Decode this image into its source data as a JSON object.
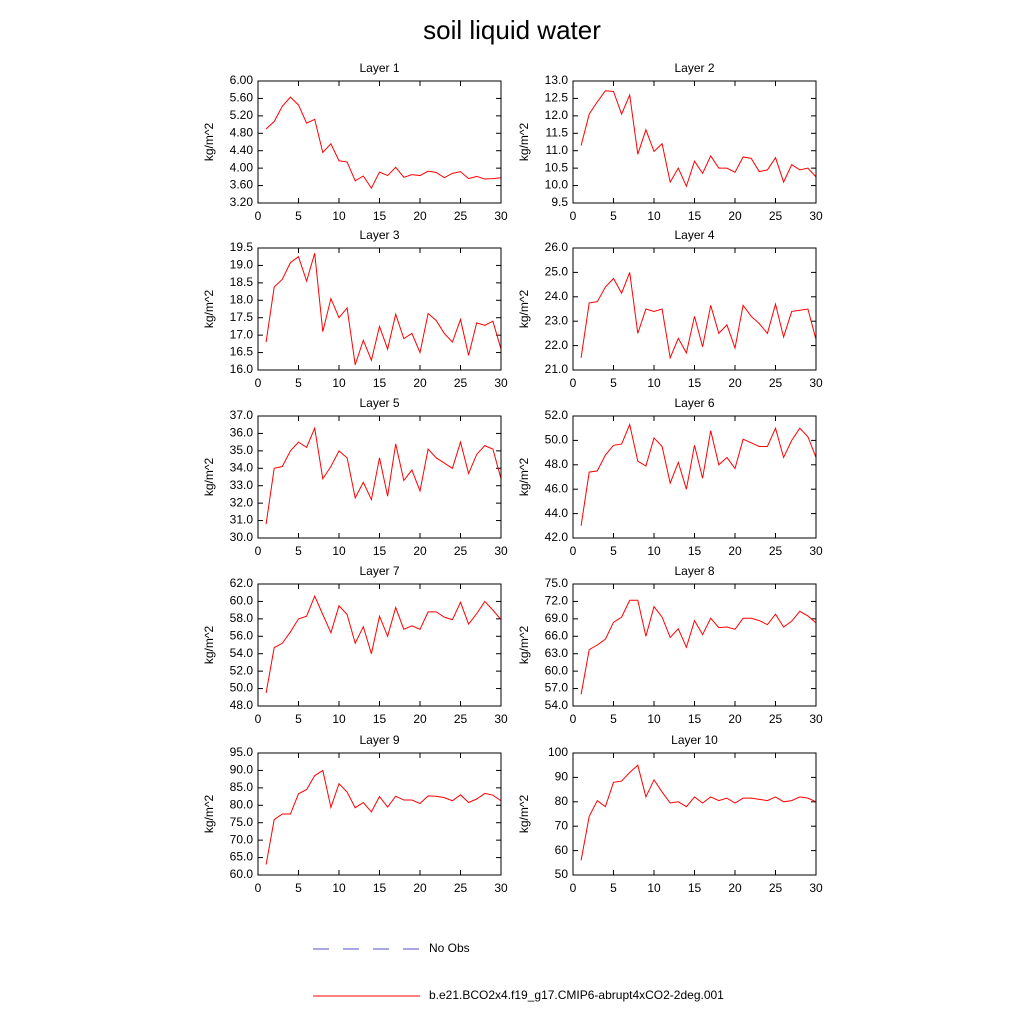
{
  "title": "soil liquid water",
  "legend": [
    {
      "label": "No Obs",
      "color": "#5050c8",
      "dash": true
    },
    {
      "label": "b.e21.BCO2x4.f19_g17.CMIP6-abrupt4xCO2-2deg.001",
      "color": "#ff0000",
      "dash": false
    }
  ],
  "chart_data": [
    {
      "type": "line",
      "title": "Layer 1",
      "ylabel": "kg/m^2",
      "color": "#ff0000",
      "x": [
        1,
        2,
        3,
        4,
        5,
        6,
        7,
        8,
        9,
        10,
        11,
        12,
        13,
        14,
        15,
        16,
        17,
        18,
        19,
        20,
        21,
        22,
        23,
        24,
        25,
        26,
        27,
        28,
        29,
        30
      ],
      "values": [
        4.9,
        5.07,
        5.42,
        5.63,
        5.45,
        5.03,
        5.12,
        4.36,
        4.56,
        4.17,
        4.14,
        3.71,
        3.82,
        3.54,
        3.91,
        3.83,
        4.02,
        3.79,
        3.85,
        3.83,
        3.93,
        3.9,
        3.78,
        3.88,
        3.92,
        3.76,
        3.81,
        3.75,
        3.76,
        3.78
      ],
      "xlim": [
        0,
        30
      ],
      "xticks": [
        0,
        5,
        10,
        15,
        20,
        25,
        30
      ],
      "ylim": [
        3.2,
        6.0
      ],
      "yticks": [
        {
          "value": 3.2,
          "label": "3.20"
        },
        {
          "value": 3.6,
          "label": "3.60"
        },
        {
          "value": 4.0,
          "label": "4.00"
        },
        {
          "value": 4.4,
          "label": "4.40"
        },
        {
          "value": 4.8,
          "label": "4.80"
        },
        {
          "value": 5.2,
          "label": "5.20"
        },
        {
          "value": 5.6,
          "label": "5.60"
        },
        {
          "value": 6.0,
          "label": "6.00"
        }
      ]
    },
    {
      "type": "line",
      "title": "Layer 2",
      "ylabel": "kg/m^2",
      "color": "#ff0000",
      "x": [
        1,
        2,
        3,
        4,
        5,
        6,
        7,
        8,
        9,
        10,
        11,
        12,
        13,
        14,
        15,
        16,
        17,
        18,
        19,
        20,
        21,
        22,
        23,
        24,
        25,
        26,
        27,
        28,
        29,
        30
      ],
      "values": [
        11.15,
        12.05,
        12.4,
        12.72,
        12.7,
        12.05,
        12.6,
        10.9,
        11.6,
        10.98,
        11.2,
        10.1,
        10.5,
        9.98,
        10.7,
        10.35,
        10.85,
        10.5,
        10.5,
        10.38,
        10.82,
        10.78,
        10.4,
        10.45,
        10.8,
        10.1,
        10.6,
        10.45,
        10.5,
        10.25
      ],
      "xlim": [
        0,
        30
      ],
      "xticks": [
        0,
        5,
        10,
        15,
        20,
        25,
        30
      ],
      "ylim": [
        9.5,
        13.0
      ],
      "yticks": [
        9.5,
        {
          "value": 10,
          "label": "10.0"
        },
        10.5,
        {
          "value": 11,
          "label": "11.0"
        },
        11.5,
        {
          "value": 12,
          "label": "12.0"
        },
        12.5,
        {
          "value": 13,
          "label": "13.0"
        }
      ]
    },
    {
      "type": "line",
      "title": "Layer 3",
      "ylabel": "kg/m^2",
      "color": "#ff0000",
      "x": [
        1,
        2,
        3,
        4,
        5,
        6,
        7,
        8,
        9,
        10,
        11,
        12,
        13,
        14,
        15,
        16,
        17,
        18,
        19,
        20,
        21,
        22,
        23,
        24,
        25,
        26,
        27,
        28,
        29,
        30
      ],
      "values": [
        16.8,
        18.38,
        18.6,
        19.08,
        19.25,
        18.55,
        19.35,
        17.1,
        18.05,
        17.5,
        17.78,
        16.15,
        16.85,
        16.28,
        17.25,
        16.6,
        17.6,
        16.9,
        17.05,
        16.5,
        17.62,
        17.42,
        17.05,
        16.8,
        17.45,
        16.42,
        17.35,
        17.28,
        17.4,
        16.6
      ],
      "xlim": [
        0,
        30
      ],
      "xticks": [
        0,
        5,
        10,
        15,
        20,
        25,
        30
      ],
      "ylim": [
        16.0,
        19.5
      ],
      "yticks": [
        {
          "value": 16,
          "label": "16.0"
        },
        16.5,
        {
          "value": 17,
          "label": "17.0"
        },
        17.5,
        {
          "value": 18,
          "label": "18.0"
        },
        18.5,
        {
          "value": 19,
          "label": "19.0"
        },
        19.5
      ]
    },
    {
      "type": "line",
      "title": "Layer 4",
      "ylabel": "kg/m^2",
      "color": "#ff0000",
      "x": [
        1,
        2,
        3,
        4,
        5,
        6,
        7,
        8,
        9,
        10,
        11,
        12,
        13,
        14,
        15,
        16,
        17,
        18,
        19,
        20,
        21,
        22,
        23,
        24,
        25,
        26,
        27,
        28,
        29,
        30
      ],
      "values": [
        21.5,
        23.75,
        23.8,
        24.4,
        24.75,
        24.15,
        25.0,
        22.5,
        23.5,
        23.4,
        23.5,
        21.5,
        22.3,
        21.7,
        23.2,
        21.95,
        23.65,
        22.5,
        22.85,
        21.9,
        23.65,
        23.2,
        22.9,
        22.5,
        23.7,
        22.35,
        23.4,
        23.45,
        23.5,
        22.25
      ],
      "xlim": [
        0,
        30
      ],
      "xticks": [
        0,
        5,
        10,
        15,
        20,
        25,
        30
      ],
      "ylim": [
        21.0,
        26.0
      ],
      "yticks": [
        {
          "value": 21,
          "label": "21.0"
        },
        {
          "value": 22,
          "label": "22.0"
        },
        {
          "value": 23,
          "label": "23.0"
        },
        {
          "value": 24,
          "label": "24.0"
        },
        {
          "value": 25,
          "label": "25.0"
        },
        {
          "value": 26,
          "label": "26.0"
        }
      ]
    },
    {
      "type": "line",
      "title": "Layer 5",
      "ylabel": "kg/m^2",
      "color": "#ff0000",
      "x": [
        1,
        2,
        3,
        4,
        5,
        6,
        7,
        8,
        9,
        10,
        11,
        12,
        13,
        14,
        15,
        16,
        17,
        18,
        19,
        20,
        21,
        22,
        23,
        24,
        25,
        26,
        27,
        28,
        29,
        30
      ],
      "values": [
        30.8,
        34.0,
        34.1,
        35.0,
        35.5,
        35.2,
        36.3,
        33.4,
        34.1,
        35.0,
        34.6,
        32.3,
        33.2,
        32.2,
        34.6,
        32.4,
        35.4,
        33.3,
        33.9,
        32.7,
        35.1,
        34.6,
        34.3,
        34.0,
        35.5,
        33.7,
        34.8,
        35.3,
        35.1,
        33.4
      ],
      "xlim": [
        0,
        30
      ],
      "xticks": [
        0,
        5,
        10,
        15,
        20,
        25,
        30
      ],
      "ylim": [
        30.0,
        37.0
      ],
      "yticks": [
        {
          "value": 30,
          "label": "30.0"
        },
        {
          "value": 31,
          "label": "31.0"
        },
        {
          "value": 32,
          "label": "32.0"
        },
        {
          "value": 33,
          "label": "33.0"
        },
        {
          "value": 34,
          "label": "34.0"
        },
        {
          "value": 35,
          "label": "35.0"
        },
        {
          "value": 36,
          "label": "36.0"
        },
        {
          "value": 37,
          "label": "37.0"
        }
      ]
    },
    {
      "type": "line",
      "title": "Layer 6",
      "ylabel": "kg/m^2",
      "color": "#ff0000",
      "x": [
        1,
        2,
        3,
        4,
        5,
        6,
        7,
        8,
        9,
        10,
        11,
        12,
        13,
        14,
        15,
        16,
        17,
        18,
        19,
        20,
        21,
        22,
        23,
        24,
        25,
        26,
        27,
        28,
        29,
        30
      ],
      "values": [
        43.0,
        47.4,
        47.5,
        48.8,
        49.6,
        49.7,
        51.3,
        48.3,
        47.9,
        50.2,
        49.5,
        46.5,
        48.2,
        46.0,
        49.6,
        46.9,
        50.8,
        48.0,
        48.6,
        47.7,
        50.1,
        49.8,
        49.5,
        49.5,
        51.0,
        48.6,
        50.0,
        51.0,
        50.3,
        48.6
      ],
      "xlim": [
        0,
        30
      ],
      "xticks": [
        0,
        5,
        10,
        15,
        20,
        25,
        30
      ],
      "ylim": [
        42.0,
        52.0
      ],
      "yticks": [
        {
          "value": 42,
          "label": "42.0"
        },
        {
          "value": 44,
          "label": "44.0"
        },
        {
          "value": 46,
          "label": "46.0"
        },
        {
          "value": 48,
          "label": "48.0"
        },
        {
          "value": 50,
          "label": "50.0"
        },
        {
          "value": 52,
          "label": "52.0"
        }
      ]
    },
    {
      "type": "line",
      "title": "Layer 7",
      "ylabel": "kg/m^2",
      "color": "#ff0000",
      "x": [
        1,
        2,
        3,
        4,
        5,
        6,
        7,
        8,
        9,
        10,
        11,
        12,
        13,
        14,
        15,
        16,
        17,
        18,
        19,
        20,
        21,
        22,
        23,
        24,
        25,
        26,
        27,
        28,
        29,
        30
      ],
      "values": [
        49.5,
        54.7,
        55.2,
        56.5,
        58.0,
        58.3,
        60.6,
        58.5,
        56.4,
        59.5,
        58.5,
        55.2,
        57.1,
        54.0,
        58.3,
        56.0,
        59.3,
        56.8,
        57.2,
        56.8,
        58.8,
        58.8,
        58.2,
        57.9,
        59.9,
        57.4,
        58.6,
        60.0,
        59.0,
        57.9
      ],
      "xlim": [
        0,
        30
      ],
      "xticks": [
        0,
        5,
        10,
        15,
        20,
        25,
        30
      ],
      "ylim": [
        48.0,
        62.0
      ],
      "yticks": [
        {
          "value": 48,
          "label": "48.0"
        },
        {
          "value": 50,
          "label": "50.0"
        },
        {
          "value": 52,
          "label": "52.0"
        },
        {
          "value": 54,
          "label": "54.0"
        },
        {
          "value": 56,
          "label": "56.0"
        },
        {
          "value": 58,
          "label": "58.0"
        },
        {
          "value": 60,
          "label": "60.0"
        },
        {
          "value": 62,
          "label": "62.0"
        }
      ]
    },
    {
      "type": "line",
      "title": "Layer 8",
      "ylabel": "kg/m^2",
      "color": "#ff0000",
      "x": [
        1,
        2,
        3,
        4,
        5,
        6,
        7,
        8,
        9,
        10,
        11,
        12,
        13,
        14,
        15,
        16,
        17,
        18,
        19,
        20,
        21,
        22,
        23,
        24,
        25,
        26,
        27,
        28,
        29,
        30
      ],
      "values": [
        56.0,
        63.7,
        64.5,
        65.5,
        68.4,
        69.3,
        72.2,
        72.2,
        66.0,
        71.1,
        69.3,
        65.8,
        67.3,
        64.1,
        68.7,
        66.3,
        69.1,
        67.5,
        67.6,
        67.2,
        69.1,
        69.1,
        68.7,
        68.0,
        69.8,
        67.6,
        68.6,
        70.3,
        69.5,
        68.3
      ],
      "xlim": [
        0,
        30
      ],
      "xticks": [
        0,
        5,
        10,
        15,
        20,
        25,
        30
      ],
      "ylim": [
        54.0,
        75.0
      ],
      "yticks": [
        {
          "value": 54,
          "label": "54.0"
        },
        {
          "value": 57,
          "label": "57.0"
        },
        {
          "value": 60,
          "label": "60.0"
        },
        {
          "value": 63,
          "label": "63.0"
        },
        {
          "value": 66,
          "label": "66.0"
        },
        {
          "value": 69,
          "label": "69.0"
        },
        {
          "value": 72,
          "label": "72.0"
        },
        {
          "value": 75,
          "label": "75.0"
        }
      ]
    },
    {
      "type": "line",
      "title": "Layer 9",
      "ylabel": "kg/m^2",
      "color": "#ff0000",
      "x": [
        1,
        2,
        3,
        4,
        5,
        6,
        7,
        8,
        9,
        10,
        11,
        12,
        13,
        14,
        15,
        16,
        17,
        18,
        19,
        20,
        21,
        22,
        23,
        24,
        25,
        26,
        27,
        28,
        29,
        30
      ],
      "values": [
        63.0,
        75.9,
        77.5,
        77.5,
        83.3,
        84.5,
        88.5,
        90.0,
        79.4,
        86.2,
        83.8,
        79.3,
        80.8,
        78.1,
        82.5,
        79.5,
        82.6,
        81.5,
        81.5,
        80.5,
        82.7,
        82.6,
        82.2,
        81.3,
        83.0,
        80.8,
        81.8,
        83.4,
        82.9,
        81.3
      ],
      "xlim": [
        0,
        30
      ],
      "xticks": [
        0,
        5,
        10,
        15,
        20,
        25,
        30
      ],
      "ylim": [
        60.0,
        95.0
      ],
      "yticks": [
        {
          "value": 60,
          "label": "60.0"
        },
        {
          "value": 65,
          "label": "65.0"
        },
        {
          "value": 70,
          "label": "70.0"
        },
        {
          "value": 75,
          "label": "75.0"
        },
        {
          "value": 80,
          "label": "80.0"
        },
        {
          "value": 85,
          "label": "85.0"
        },
        {
          "value": 90,
          "label": "90.0"
        },
        {
          "value": 95,
          "label": "95.0"
        }
      ]
    },
    {
      "type": "line",
      "title": "Layer 10",
      "ylabel": "kg/m^2",
      "color": "#ff0000",
      "x": [
        1,
        2,
        3,
        4,
        5,
        6,
        7,
        8,
        9,
        10,
        11,
        12,
        13,
        14,
        15,
        16,
        17,
        18,
        19,
        20,
        21,
        22,
        23,
        24,
        25,
        26,
        27,
        28,
        29,
        30
      ],
      "values": [
        56,
        74,
        80.5,
        78,
        88,
        88.5,
        92,
        95,
        82,
        89,
        84,
        79.5,
        80,
        78,
        82,
        79.5,
        82,
        80.5,
        81.5,
        79.5,
        81.5,
        81.5,
        81,
        80.5,
        82,
        80,
        80.5,
        82,
        81.5,
        80
      ],
      "xlim": [
        0,
        30
      ],
      "xticks": [
        0,
        5,
        10,
        15,
        20,
        25,
        30
      ],
      "ylim": [
        50,
        100
      ],
      "yticks": [
        50,
        60,
        70,
        80,
        90,
        100
      ]
    }
  ]
}
